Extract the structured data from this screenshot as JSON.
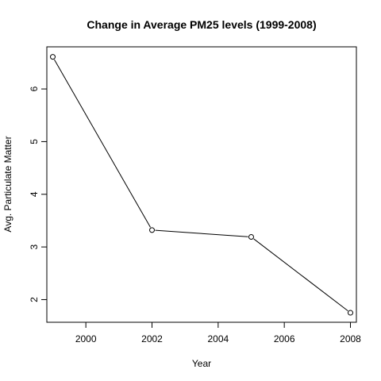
{
  "chart_data": {
    "type": "line",
    "title": "Change in Average PM25 levels (1999-2008)",
    "xlabel": "Year",
    "ylabel": "Avg. Particulate Matter",
    "x": [
      1999,
      2002,
      2005,
      2008
    ],
    "y": [
      6.61,
      3.32,
      3.19,
      1.75
    ],
    "xlim": [
      1998.82,
      2008.18
    ],
    "ylim": [
      1.57,
      6.8
    ],
    "xticks": [
      2000,
      2002,
      2004,
      2006,
      2008
    ],
    "yticks": [
      2,
      3,
      4,
      5,
      6
    ],
    "xtick_labels": [
      "2000",
      "2002",
      "2004",
      "2006",
      "2008"
    ],
    "ytick_labels": [
      "2",
      "3",
      "4",
      "5",
      "6"
    ],
    "marker": "open-circle",
    "line_color": "#000000",
    "grid": false,
    "legend": "none"
  }
}
